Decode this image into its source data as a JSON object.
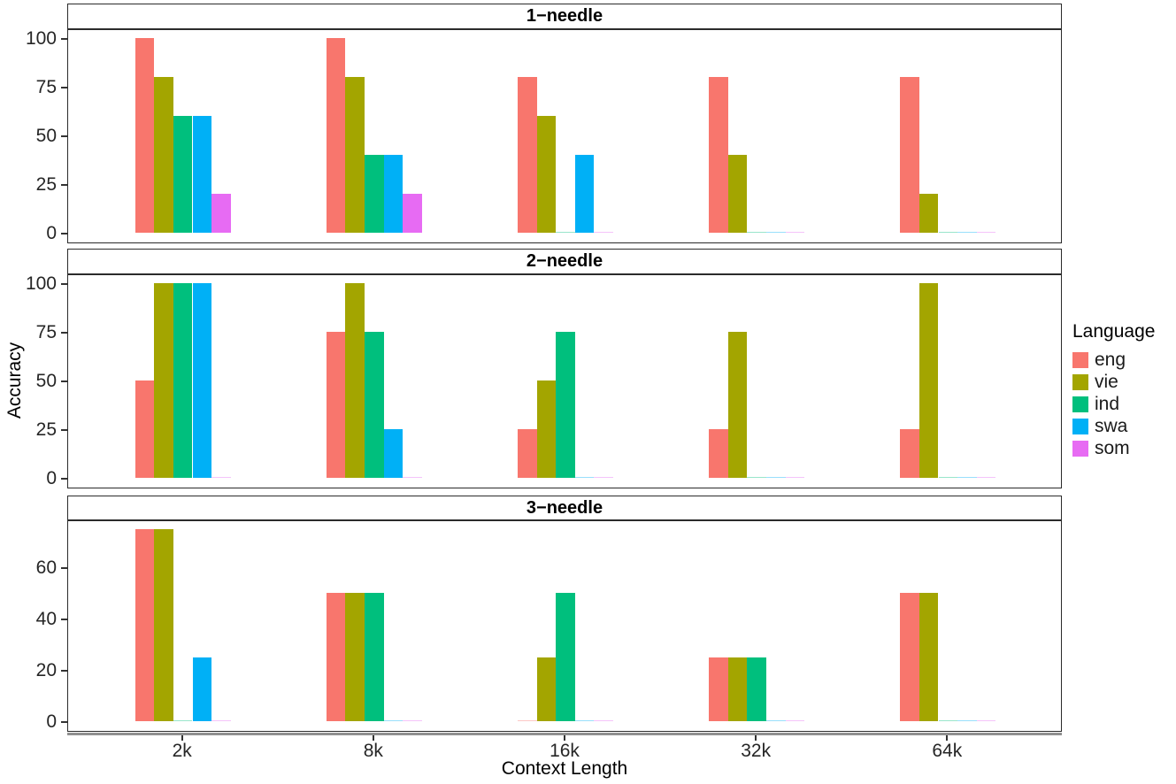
{
  "chart_data": {
    "type": "bar",
    "title": "",
    "xlabel": "Context Length",
    "ylabel": "Accuracy",
    "legend_title": "Language",
    "legend_position": "right",
    "grid": false,
    "categories": [
      "2k",
      "8k",
      "16k",
      "32k",
      "64k"
    ],
    "series_names": [
      "eng",
      "vie",
      "ind",
      "swa",
      "som"
    ],
    "colors": {
      "eng": "#F8766D",
      "vie": "#A3A500",
      "ind": "#00BF7D",
      "swa": "#00B0F6",
      "som": "#E76BF3"
    },
    "facets": [
      {
        "title": "1−needle",
        "ymax": 100,
        "ylim": [
          0,
          100
        ],
        "yticks": [
          0,
          25,
          50,
          75,
          100
        ],
        "series": [
          {
            "name": "eng",
            "values": [
              100,
              100,
              80,
              80,
              80
            ]
          },
          {
            "name": "vie",
            "values": [
              80,
              80,
              60,
              40,
              20
            ]
          },
          {
            "name": "ind",
            "values": [
              60,
              40,
              0,
              0,
              0
            ]
          },
          {
            "name": "swa",
            "values": [
              60,
              40,
              40,
              0,
              0
            ]
          },
          {
            "name": "som",
            "values": [
              20,
              20,
              0,
              0,
              0
            ]
          }
        ]
      },
      {
        "title": "2−needle",
        "ymax": 100,
        "ylim": [
          0,
          100
        ],
        "yticks": [
          0,
          25,
          50,
          75,
          100
        ],
        "series": [
          {
            "name": "eng",
            "values": [
              50,
              75,
              25,
              25,
              25
            ]
          },
          {
            "name": "vie",
            "values": [
              100,
              100,
              50,
              75,
              100
            ]
          },
          {
            "name": "ind",
            "values": [
              100,
              75,
              75,
              0,
              0
            ]
          },
          {
            "name": "swa",
            "values": [
              100,
              25,
              0,
              0,
              0
            ]
          },
          {
            "name": "som",
            "values": [
              0,
              0,
              0,
              0,
              0
            ]
          }
        ]
      },
      {
        "title": "3−needle",
        "ymax": 75,
        "ylim": [
          0,
          75
        ],
        "yticks": [
          0,
          20,
          40,
          60
        ],
        "series": [
          {
            "name": "eng",
            "values": [
              75,
              50,
              0,
              25,
              50
            ]
          },
          {
            "name": "vie",
            "values": [
              75,
              50,
              25,
              25,
              50
            ]
          },
          {
            "name": "ind",
            "values": [
              0,
              50,
              50,
              25,
              0
            ]
          },
          {
            "name": "swa",
            "values": [
              25,
              0,
              0,
              0,
              0
            ]
          },
          {
            "name": "som",
            "values": [
              0,
              0,
              0,
              0,
              0
            ]
          }
        ]
      }
    ]
  }
}
